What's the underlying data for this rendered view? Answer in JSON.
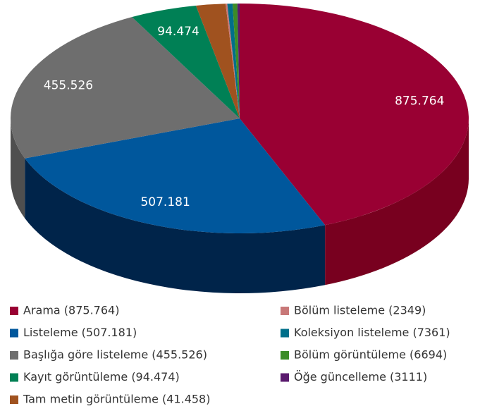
{
  "chart_data": {
    "type": "pie3d",
    "categories": [
      "Arama (875.764)",
      "Listeleme (507.181)",
      "Başlığa göre listeleme (455.526)",
      "Kayıt görüntüleme (94.474)",
      "Tam metin görüntüleme (41.458)",
      "Bölüm listeleme (2349)",
      "Koleksiyon listeleme (7361)",
      "Bölüm görüntüleme (6694)",
      "Öğe güncelleme (3111)"
    ],
    "values": [
      875764,
      507181,
      455526,
      94474,
      41458,
      2349,
      7361,
      6694,
      3111
    ],
    "value_labels": [
      "875.764",
      "507.181",
      "455.526",
      "94.474",
      null,
      null,
      null,
      null,
      null
    ],
    "colors": [
      "#990033",
      "#00579c",
      "#6e6e6e",
      "#008055",
      "#a0521f",
      "#c87878",
      "#006f8a",
      "#3c8c28",
      "#5a1a6e"
    ],
    "side_colors": [
      "#78001f",
      "#00244a",
      "#4f4f4f",
      "#005a3c",
      "#703a15",
      "#8c5454",
      "#004e62",
      "#2a631c",
      "#3f124e"
    ]
  }
}
